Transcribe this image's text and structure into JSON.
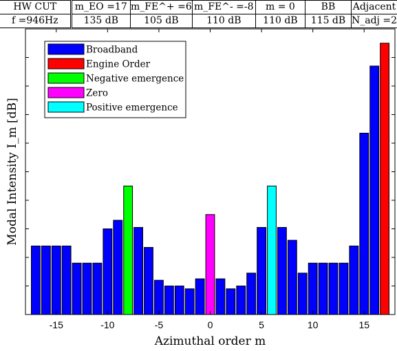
{
  "header": {
    "row1": [
      "HW  CUT",
      "m_EO =17",
      "m_FE^+ =6",
      "m_FE^- =-8",
      "m = 0",
      "BB",
      "Adjacent"
    ],
    "row2": [
      "f =946Hz",
      "135 dB",
      "105 dB",
      "110 dB",
      "110 dB",
      "115 dB",
      "N_adj =2"
    ]
  },
  "chart_data": {
    "type": "bar",
    "xlabel": "Azimuthal order m",
    "ylabel": "Modal Intensity I_m [dB]",
    "xlim": [
      -18,
      18
    ],
    "ylim": [
      0,
      10
    ],
    "xticks": [
      -15,
      -10,
      -5,
      0,
      5,
      10,
      15
    ],
    "grid": false,
    "legend_position": "top-left",
    "series": [
      {
        "name": "Broadband",
        "color": "#0000ff",
        "x": [
          -17,
          -16,
          -15,
          -14,
          -13,
          -12,
          -11,
          -10,
          -9,
          -7,
          -6,
          -5,
          -4,
          -3,
          -2,
          -1,
          1,
          2,
          3,
          4,
          5,
          7,
          8,
          9,
          10,
          11,
          12,
          13,
          14,
          15,
          16
        ],
        "values": [
          2.4,
          2.4,
          2.4,
          2.4,
          1.8,
          1.8,
          1.8,
          3.0,
          3.3,
          3.05,
          2.35,
          1.2,
          1.0,
          1.0,
          0.9,
          1.25,
          1.25,
          0.9,
          1.0,
          1.45,
          3.05,
          3.05,
          2.6,
          1.45,
          1.8,
          1.8,
          1.8,
          1.8,
          2.4,
          6.35,
          8.7
        ]
      },
      {
        "name": "Engine Order",
        "color": "#ff0000",
        "x": [
          17
        ],
        "values": [
          9.5
        ]
      },
      {
        "name": "Negative emergence",
        "color": "#00ff00",
        "x": [
          -8
        ],
        "values": [
          4.5
        ]
      },
      {
        "name": "Zero",
        "color": "#ff00ff",
        "x": [
          0
        ],
        "values": [
          3.5
        ]
      },
      {
        "name": "Positive emergence",
        "color": "#00ffff",
        "x": [
          6
        ],
        "values": [
          4.5
        ]
      }
    ]
  }
}
